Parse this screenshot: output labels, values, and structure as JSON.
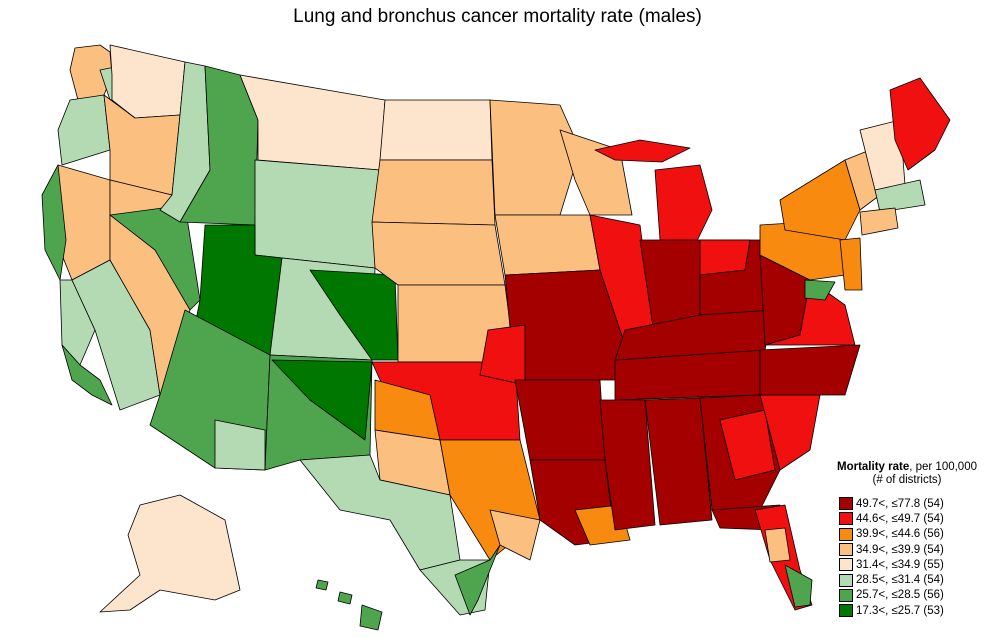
{
  "title": "Lung and bronchus cancer mortality rate (males)",
  "legend": {
    "title_bold": "Mortality rate",
    "title_rest": ", per 100,000",
    "subtitle": "(# of districts)",
    "items": [
      {
        "label": "49.7<, ≤77.8 (54)",
        "color": "#a50000"
      },
      {
        "label": "44.6<, ≤49.7 (54)",
        "color": "#f01010"
      },
      {
        "label": "39.9<, ≤44.6 (56)",
        "color": "#f98a10"
      },
      {
        "label": "34.9<, ≤39.9 (54)",
        "color": "#fbbf80"
      },
      {
        "label": "31.4<, ≤34.9 (55)",
        "color": "#fde4cc"
      },
      {
        "label": "28.5<, ≤31.4 (54)",
        "color": "#b3dab3"
      },
      {
        "label": "25.7<, ≤28.5 (56)",
        "color": "#4ea54e"
      },
      {
        "label": "17.3<, ≤25.7 (53)",
        "color": "#007800"
      }
    ]
  },
  "palette": {
    "c1": "#a50000",
    "c2": "#f01010",
    "c3": "#f98a10",
    "c4": "#fbbf80",
    "c5": "#fde4cc",
    "c6": "#b3dab3",
    "c7": "#4ea54e",
    "c8": "#007800"
  }
}
